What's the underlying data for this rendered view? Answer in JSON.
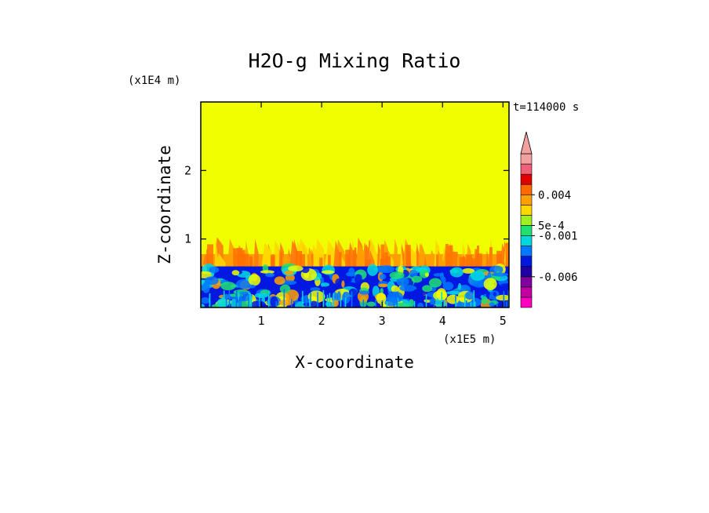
{
  "chart_data": {
    "type": "heatmap",
    "title": "H2O-g Mixing Ratio",
    "xlabel": "X-coordinate",
    "ylabel": "Z-coordinate",
    "x_scale_label": "(x1E5 m)",
    "y_scale_label": "(x1E4 m)",
    "time_label": "t=114000 s",
    "x_ticks": [
      "1",
      "2",
      "3",
      "4",
      "5"
    ],
    "y_ticks": [
      "1",
      "2"
    ],
    "xlim": [
      0,
      5.1
    ],
    "ylim": [
      0,
      3.0
    ],
    "colorbar": {
      "colors": [
        "#ff00c0",
        "#c000a0",
        "#8000a0",
        "#2000a0",
        "#0018e0",
        "#0078ff",
        "#00d8e0",
        "#20e070",
        "#a0f020",
        "#ffd800",
        "#ffa000",
        "#ff6a00",
        "#e00000",
        "#f06078",
        "#f3a0a0"
      ],
      "labels": [
        "0.004",
        "5e-4",
        "-0.001",
        "-0.006"
      ],
      "extend": "max"
    },
    "layers": [
      {
        "name": "upper",
        "z_range": [
          1.0,
          3.0
        ],
        "color": "#f0ff00"
      },
      {
        "name": "transition",
        "z_range": [
          0.55,
          1.0
        ],
        "colors": [
          "#ffa000",
          "#ffd800",
          "#ff7a10"
        ]
      },
      {
        "name": "lower",
        "z_range": [
          0.0,
          0.6
        ],
        "colors": [
          "#0018e0",
          "#0078ff",
          "#00d8e0",
          "#20e070",
          "#f0ff00"
        ]
      }
    ]
  }
}
